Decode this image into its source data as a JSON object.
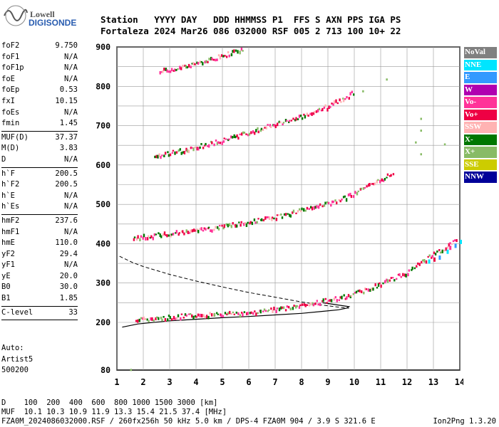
{
  "logo": {
    "line1": "Lowell",
    "line2": "DIGISONDE"
  },
  "header": {
    "row1": "Station   YYYY DAY   DDD HHMMSS P1  FFS S AXN PPS IGA PS",
    "row2": "Fortaleza 2024 Mar26 086 032000 RSF 005 2 713 100 10+ 22"
  },
  "params": {
    "group1": [
      {
        "k": "foF2",
        "v": "9.750"
      },
      {
        "k": "foF1",
        "v": "N/A"
      },
      {
        "k": "foF1p",
        "v": "N/A"
      },
      {
        "k": "foE",
        "v": "N/A"
      },
      {
        "k": "foEp",
        "v": "0.53"
      },
      {
        "k": "fxI",
        "v": "10.15"
      },
      {
        "k": "foEs",
        "v": "N/A"
      },
      {
        "k": "fmin",
        "v": "1.45"
      }
    ],
    "group2": [
      {
        "k": "MUF(D)",
        "v": "37.37"
      },
      {
        "k": "M(D)",
        "v": "3.83"
      },
      {
        "k": "D",
        "v": "N/A"
      }
    ],
    "group3": [
      {
        "k": "h`F",
        "v": "200.5"
      },
      {
        "k": "h`F2",
        "v": "200.5"
      },
      {
        "k": "h`E",
        "v": "N/A"
      },
      {
        "k": "h`Es",
        "v": "N/A"
      }
    ],
    "group4": [
      {
        "k": "hmF2",
        "v": "237.6"
      },
      {
        "k": "hmF1",
        "v": "N/A"
      },
      {
        "k": "hmE",
        "v": "110.0"
      },
      {
        "k": "yF2",
        "v": "29.4"
      },
      {
        "k": "yF1",
        "v": "N/A"
      },
      {
        "k": "yE",
        "v": "20.0"
      },
      {
        "k": "B0",
        "v": "30.0"
      },
      {
        "k": "B1",
        "v": "1.85"
      }
    ],
    "group5": [
      {
        "k": "C-level",
        "v": "33"
      }
    ]
  },
  "auto": {
    "line1": "Auto:",
    "line2": "Artist5",
    "line3": "500200"
  },
  "legend": [
    {
      "label": "NoVal",
      "bg": "#808080",
      "fg": "#ffffff"
    },
    {
      "label": "NNE",
      "bg": "#00e5ff",
      "fg": "#ffffff"
    },
    {
      "label": "E",
      "bg": "#3399ff",
      "fg": "#ffffff"
    },
    {
      "label": "W",
      "bg": "#b000b0",
      "fg": "#ffffff"
    },
    {
      "label": "Vo-",
      "bg": "#ff3399",
      "fg": "#ffffff"
    },
    {
      "label": "Vo+",
      "bg": "#ee0044",
      "fg": "#ffffff"
    },
    {
      "label": "SSW",
      "bg": "#ffb3b3",
      "fg": "#ffffff"
    },
    {
      "label": "X-",
      "bg": "#007700",
      "fg": "#ffffff"
    },
    {
      "label": "X+",
      "bg": "#88bb66",
      "fg": "#ffffff"
    },
    {
      "label": "SSE",
      "bg": "#cccc00",
      "fg": "#ffffff"
    },
    {
      "label": "NNW",
      "bg": "#000099",
      "fg": "#ffffff"
    }
  ],
  "bottom": {
    "d_row": "D    100  200  400  600  800 1000 1500 3000 [km]",
    "muf_row": "MUF  10.1 10.3 10.9 11.9 13.3 15.4 21.5 37.4 [MHz]",
    "file_row": "FZA0M_2024086032000.RSF / 260fx256h 50 kHz 5.0 km / DPS-4 FZA0M 904 / 3.9 S 321.6 E",
    "credit": "Ion2Png 1.3.20"
  },
  "chart_data": {
    "type": "scatter",
    "xlim": [
      1,
      14
    ],
    "ylim": [
      80,
      900
    ],
    "x_ticks": [
      1,
      2,
      3,
      4,
      5,
      6,
      7,
      8,
      9,
      10,
      11,
      12,
      13,
      14
    ],
    "y_ticks": [
      80,
      200,
      300,
      400,
      500,
      600,
      700,
      800,
      900
    ],
    "grid": true,
    "traces": [
      {
        "name": "F trace 1",
        "points": [
          [
            1.7,
            207
          ],
          [
            2,
            210
          ],
          [
            2.5,
            212
          ],
          [
            3,
            215
          ],
          [
            3.5,
            218
          ],
          [
            4,
            220
          ],
          [
            4.5,
            222
          ],
          [
            5,
            223
          ],
          [
            5.5,
            225
          ],
          [
            6,
            228
          ],
          [
            6.5,
            231
          ],
          [
            7,
            235
          ],
          [
            7.5,
            240
          ],
          [
            8,
            246
          ],
          [
            8.5,
            252
          ],
          [
            9,
            258
          ],
          [
            9.5,
            265
          ],
          [
            10,
            275
          ],
          [
            10.5,
            288
          ],
          [
            11,
            300
          ],
          [
            11.5,
            315
          ],
          [
            12,
            330
          ],
          [
            12.5,
            355
          ],
          [
            13,
            375
          ],
          [
            13.5,
            395
          ],
          [
            13.9,
            420
          ]
        ]
      },
      {
        "name": "F trace 2",
        "points": [
          [
            1.6,
            415
          ],
          [
            2,
            420
          ],
          [
            3,
            428
          ],
          [
            4,
            435
          ],
          [
            5,
            445
          ],
          [
            6,
            458
          ],
          [
            7,
            470
          ],
          [
            7.5,
            478
          ],
          [
            8,
            487
          ],
          [
            8.5,
            495
          ],
          [
            9,
            505
          ],
          [
            9.5,
            515
          ],
          [
            10,
            530
          ],
          [
            10.5,
            548
          ],
          [
            11,
            565
          ],
          [
            11.5,
            585
          ]
        ]
      },
      {
        "name": "F trace 3",
        "points": [
          [
            2.4,
            622
          ],
          [
            3,
            632
          ],
          [
            4,
            648
          ],
          [
            5,
            665
          ],
          [
            6,
            685
          ],
          [
            7,
            705
          ],
          [
            8,
            725
          ],
          [
            9,
            752
          ],
          [
            9.7,
            775
          ],
          [
            10,
            790
          ]
        ]
      },
      {
        "name": "F trace 4",
        "points": [
          [
            2.6,
            840
          ],
          [
            3,
            845
          ],
          [
            4,
            862
          ],
          [
            5,
            880
          ],
          [
            5.8,
            897
          ]
        ]
      }
    ],
    "profile": {
      "dashed": [
        [
          1.1,
          368
        ],
        [
          1.6,
          352
        ],
        [
          2,
          342
        ],
        [
          3,
          322
        ],
        [
          4,
          305
        ],
        [
          5,
          290
        ],
        [
          6,
          276
        ],
        [
          7,
          264
        ],
        [
          8,
          252
        ],
        [
          8.8,
          244
        ],
        [
          9.5,
          238
        ],
        [
          9.8,
          236
        ]
      ],
      "solid": [
        [
          1.2,
          188
        ],
        [
          1.8,
          196
        ],
        [
          3,
          204
        ],
        [
          4,
          208
        ],
        [
          5,
          212
        ],
        [
          6,
          215
        ],
        [
          7,
          219
        ],
        [
          8,
          223
        ],
        [
          8.8,
          228
        ],
        [
          9.4,
          232
        ],
        [
          9.7,
          236
        ],
        [
          9.8,
          240
        ],
        [
          9.3,
          245
        ],
        [
          8.8,
          250
        ]
      ]
    },
    "outliers": [
      [
        1.5,
        83
      ],
      [
        12.5,
        720
      ],
      [
        12.5,
        690
      ],
      [
        12.5,
        630
      ],
      [
        13.4,
        655
      ],
      [
        11.2,
        820
      ],
      [
        10.3,
        790
      ],
      [
        12.3,
        660
      ]
    ]
  }
}
